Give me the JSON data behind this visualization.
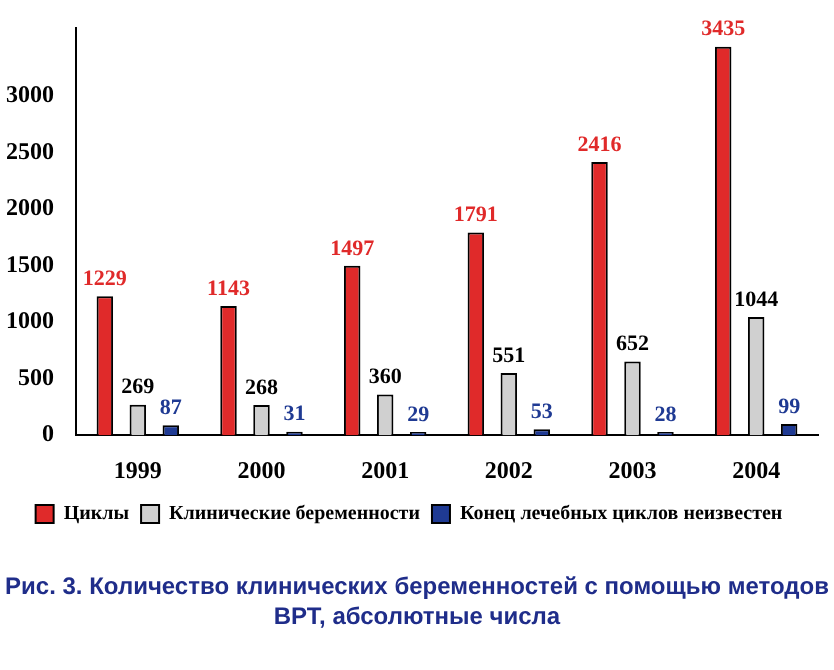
{
  "chart_data": {
    "type": "bar",
    "title": "Рис. 3. Количество клинических беременностей с помощью методов ВРТ, абсолютные числа",
    "categories": [
      "1999",
      "2000",
      "2001",
      "2002",
      "2003",
      "2004"
    ],
    "series": [
      {
        "name": "Циклы",
        "color": "#e02a2a",
        "values": [
          1229,
          1143,
          1497,
          1791,
          2416,
          3435
        ]
      },
      {
        "name": "Клинические беременности",
        "color": "#d0d0d0",
        "values": [
          269,
          268,
          360,
          551,
          652,
          1044
        ]
      },
      {
        "name": "Конец лечебных циклов неизвестен",
        "color": "#1f3a93",
        "values": [
          87,
          31,
          29,
          53,
          28,
          99
        ]
      }
    ],
    "ylim": [
      0,
      3600
    ],
    "yticks": [
      0,
      500,
      1000,
      1500,
      2000,
      2500,
      3000
    ],
    "grid": false,
    "legend": "bottom",
    "data_labels": true
  }
}
